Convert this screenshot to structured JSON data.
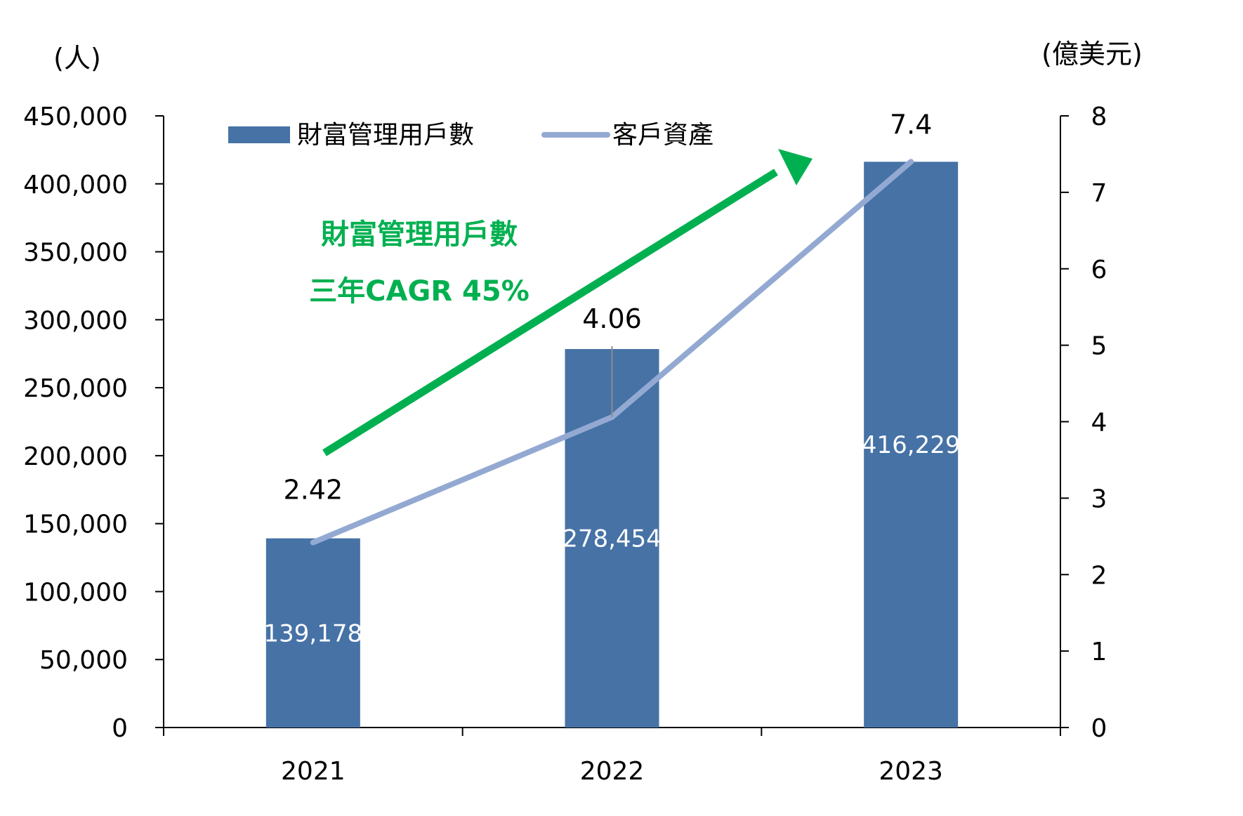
{
  "chart_data": {
    "type": "bar+line",
    "categories": [
      "2021",
      "2022",
      "2023"
    ],
    "series": [
      {
        "name": "財富管理用戶數",
        "type": "bar",
        "axis": "left",
        "values": [
          139178,
          278454,
          416229
        ],
        "color": "#4672a6",
        "labels": [
          "139,178",
          "278,454",
          "416,229"
        ]
      },
      {
        "name": "客戶資產",
        "type": "line",
        "axis": "right",
        "values": [
          2.42,
          4.06,
          7.4
        ],
        "color": "#93a9d2",
        "labels": [
          "2.42",
          "4.06",
          "7.4"
        ]
      }
    ],
    "left_axis": {
      "unit": "(人)",
      "min": 0,
      "max": 450000,
      "ticks": [
        "0",
        "50,000",
        "100,000",
        "150,000",
        "200,000",
        "250,000",
        "300,000",
        "350,000",
        "400,000",
        "450,000"
      ]
    },
    "right_axis": {
      "unit": "(億美元)",
      "min": 0,
      "max": 8,
      "ticks": [
        "0",
        "1",
        "2",
        "3",
        "4",
        "5",
        "6",
        "7",
        "8"
      ]
    },
    "legend_position": "top",
    "annotation": {
      "lines": [
        "財富管理用戶數",
        "三年CAGR 45%"
      ],
      "color": "#00b050"
    },
    "arrow_color": "#00b050",
    "grid": false
  }
}
